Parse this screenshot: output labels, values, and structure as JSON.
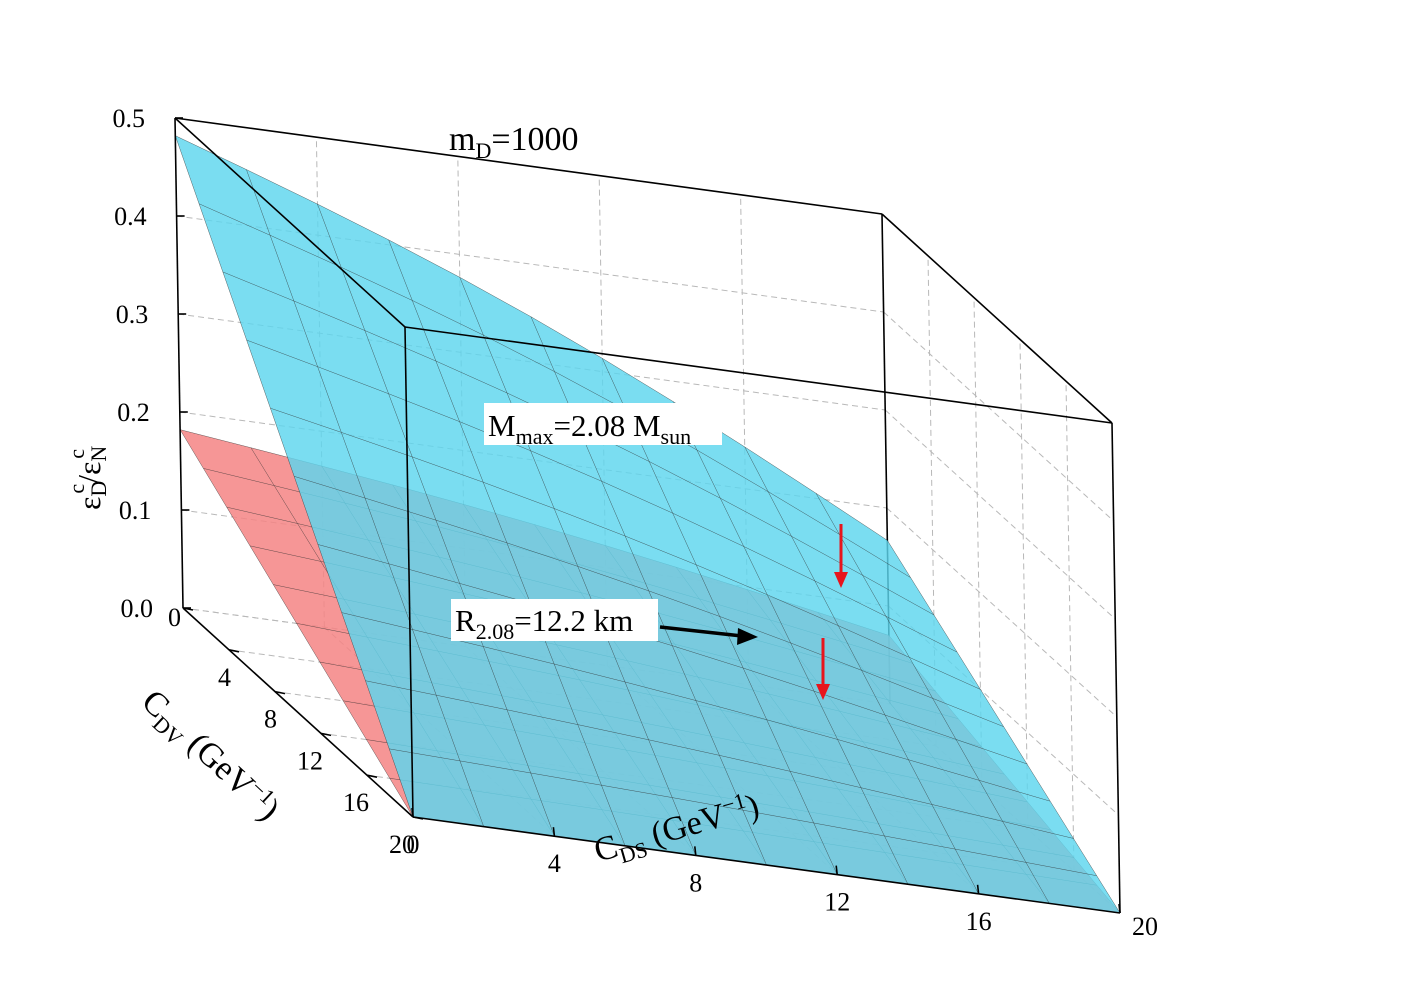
{
  "chart_data": {
    "type": "surface3d",
    "annotation_title": {
      "main": "m",
      "sub": "D",
      "tail": "=1000"
    },
    "x_axis": {
      "label_main": "C",
      "label_sub": "DS",
      "label_tail": " (GeV",
      "label_sup": "−1",
      "label_close": ")",
      "ticks": [
        0,
        4,
        8,
        12,
        16,
        20
      ],
      "range": [
        0,
        20
      ]
    },
    "y_axis": {
      "label_main": "C",
      "label_sub": "DV",
      "label_tail": " (GeV",
      "label_sup": "−1",
      "label_close": ")",
      "ticks": [
        0,
        4,
        8,
        12,
        16,
        20
      ],
      "range": [
        0,
        20
      ]
    },
    "z_axis": {
      "label_e1": "ε",
      "label_sub1": "D",
      "label_sup1": "c",
      "label_slash": "/",
      "label_e2": "ε",
      "label_sub2": "N",
      "label_sup2": "c",
      "ticks": [
        "0.0",
        "0.1",
        "0.2",
        "0.3",
        "0.4",
        "0.5"
      ],
      "range": [
        0,
        0.5
      ]
    },
    "series": [
      {
        "label_main": "M",
        "label_sub": "max",
        "label_mid": "=2.08 M",
        "label_sub2": "sun",
        "color": "#5dd6ee",
        "corners": {
          "x0y0": 0.482,
          "x20y0": 0.167,
          "x0y20": 0.0,
          "x20y20": 0.0
        }
      },
      {
        "label_main": "R",
        "label_sub": "2.08",
        "label_mid": "=12.2 km",
        "color": "#f48484",
        "corners": {
          "x0y0": 0.182,
          "x20y0": 0.07,
          "x0y20": 0.0,
          "x20y20": 0.0
        }
      }
    ],
    "arrow_color": "#e8141c"
  }
}
